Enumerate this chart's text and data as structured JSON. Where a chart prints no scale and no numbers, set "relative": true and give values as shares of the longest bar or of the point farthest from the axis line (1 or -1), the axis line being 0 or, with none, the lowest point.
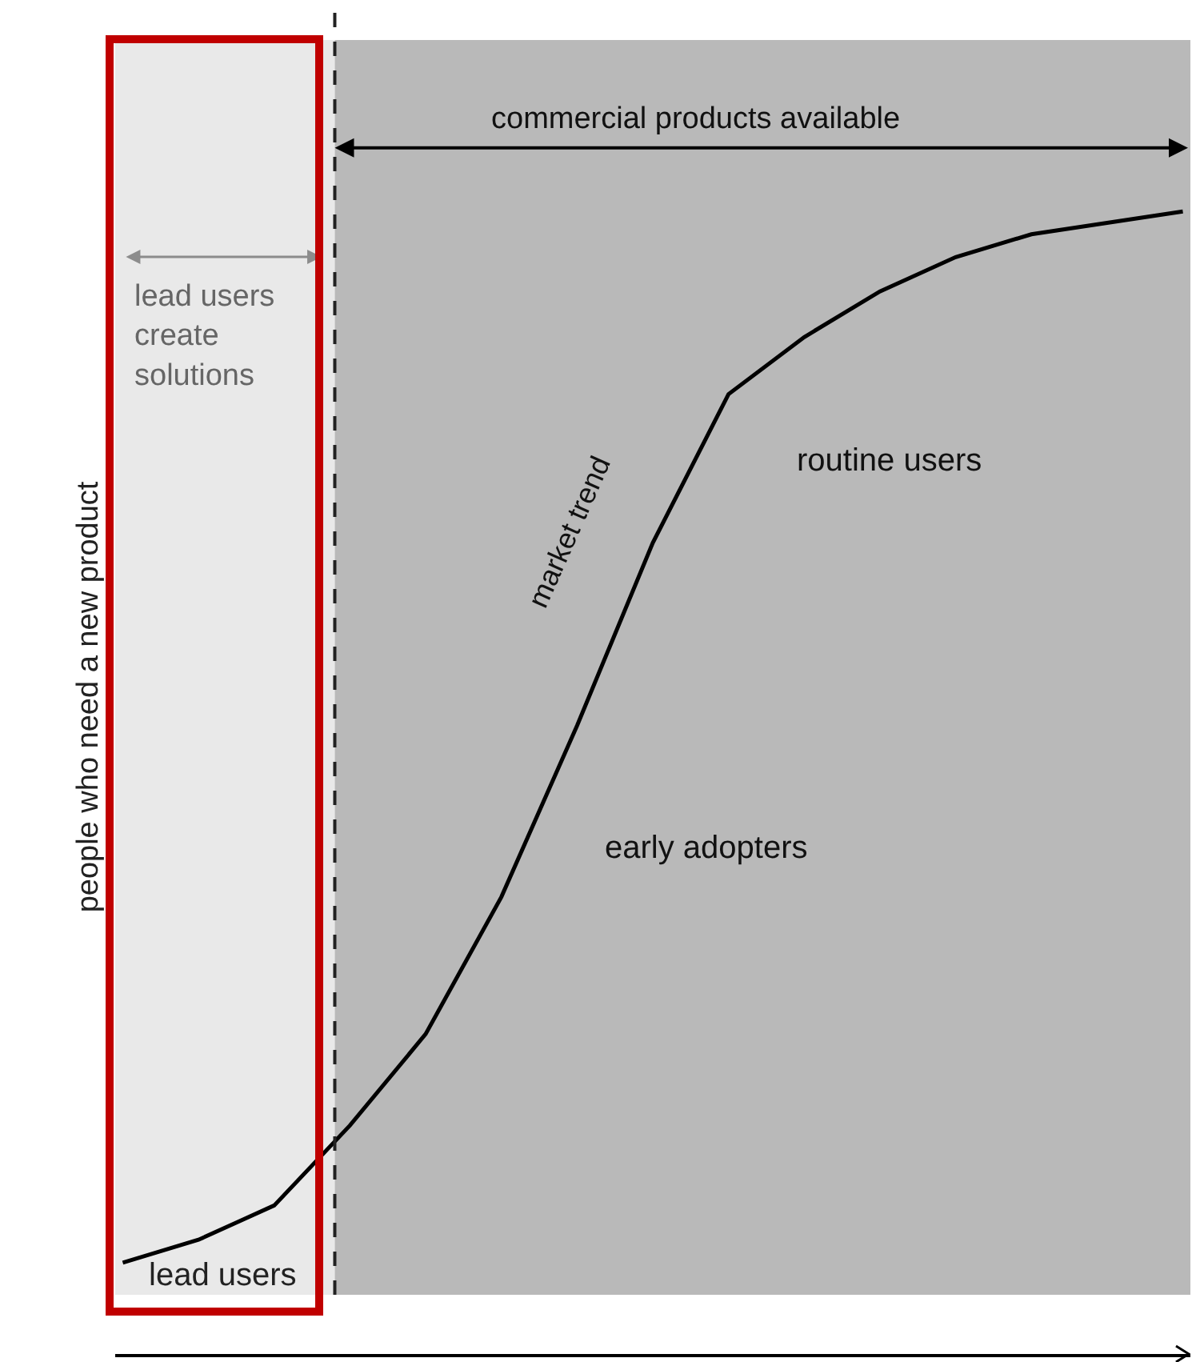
{
  "chart_data": {
    "type": "line",
    "relative": true,
    "ylabel": "people who need a new product",
    "categories": [
      null,
      null,
      null,
      null,
      null,
      null,
      null,
      null,
      null,
      null,
      null,
      null,
      null,
      null,
      null
    ],
    "series": [
      {
        "name": "market trend",
        "color": "#000000",
        "values": [
          0.08,
          0.1,
          0.13,
          0.2,
          0.28,
          0.4,
          0.55,
          0.71,
          0.84,
          0.89,
          0.93,
          0.96,
          0.98,
          0.99,
          1
        ]
      }
    ],
    "marker": "none",
    "line_style": "solid",
    "legend": false,
    "annotations": [
      "commercial products available",
      "lead users create solutions",
      "routine users",
      "early adopters",
      "lead users"
    ]
  }
}
